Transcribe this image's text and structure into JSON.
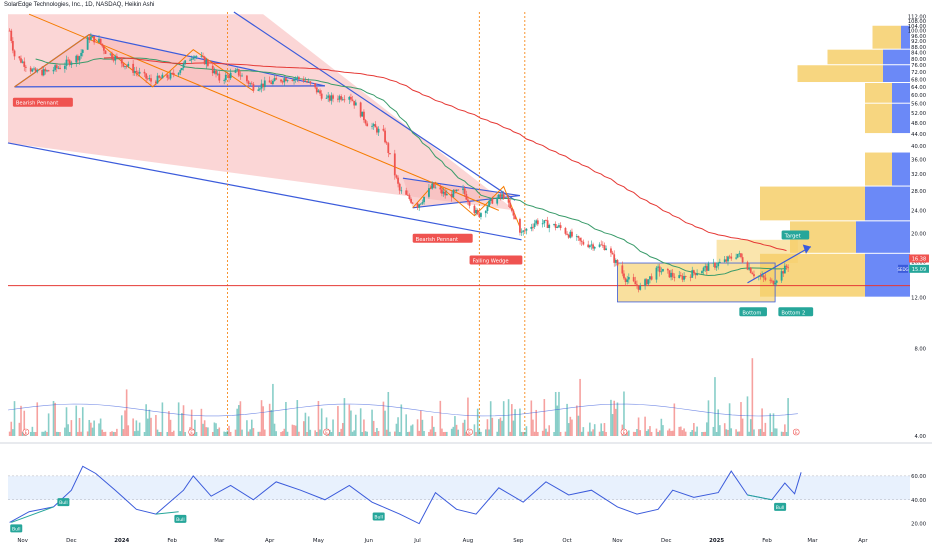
{
  "header": {
    "title": "SolarEdge Technologies, Inc., 1D, NASDAQ, Heikin Ashi"
  },
  "colors": {
    "up": "#26a69a",
    "down": "#ef5350",
    "ma_short": "#3a9b6a",
    "ma_long": "#e53935",
    "trendline": "#3b5bdb",
    "wedge_fill": "#fbd2d2",
    "orange": "#f57c00",
    "volume_profile_up": "#f6cf6a",
    "volume_profile_down": "#5b7cf6",
    "rsi_line": "#3b5bdb",
    "rsi_band": "#e8f1fd"
  },
  "chart_data": [
    {
      "type": "candlestick",
      "style": "heikin-ashi",
      "price_axis": {
        "scale": "log",
        "ticks": [
          "4.00",
          "8.00",
          "12.00",
          "16.00",
          "20.00",
          "24.00",
          "28.00",
          "32.00",
          "36.00",
          "40.00",
          "44.00",
          "48.00",
          "52.00",
          "56.00",
          "60.00",
          "64.00",
          "68.00",
          "72.00",
          "76.00",
          "80.00",
          "84.00",
          "88.00",
          "92.00",
          "96.00",
          "100.00",
          "104.00",
          "108.00",
          "112.00"
        ],
        "range": [
          4,
          116
        ]
      },
      "time_axis": {
        "ticks": [
          "Nov",
          "Dec",
          "2024",
          "Feb",
          "Mar",
          "Apr",
          "May",
          "Jun",
          "Jul",
          "Aug",
          "Sep",
          "Oct",
          "Nov",
          "Dec",
          "2025",
          "Feb",
          "Mar",
          "Apr"
        ],
        "range": [
          "2023-10-23",
          "2025-04-30"
        ]
      },
      "price_path": [
        {
          "date": "2023-10-24",
          "price": 100
        },
        {
          "date": "2023-10-27",
          "price": 82
        },
        {
          "date": "2023-11-01",
          "price": 78
        },
        {
          "date": "2023-11-08",
          "price": 72
        },
        {
          "date": "2023-11-15",
          "price": 72
        },
        {
          "date": "2023-11-24",
          "price": 75
        },
        {
          "date": "2023-12-06",
          "price": 82
        },
        {
          "date": "2023-12-12",
          "price": 95
        },
        {
          "date": "2023-12-18",
          "price": 92
        },
        {
          "date": "2023-12-22",
          "price": 85
        },
        {
          "date": "2024-01-05",
          "price": 75
        },
        {
          "date": "2024-01-19",
          "price": 67
        },
        {
          "date": "2024-02-01",
          "price": 70
        },
        {
          "date": "2024-02-08",
          "price": 76
        },
        {
          "date": "2024-02-14",
          "price": 83
        },
        {
          "date": "2024-02-22",
          "price": 78
        },
        {
          "date": "2024-03-01",
          "price": 68
        },
        {
          "date": "2024-03-12",
          "price": 72
        },
        {
          "date": "2024-03-22",
          "price": 64
        },
        {
          "date": "2024-04-01",
          "price": 66
        },
        {
          "date": "2024-04-12",
          "price": 69
        },
        {
          "date": "2024-04-22",
          "price": 68
        },
        {
          "date": "2024-05-06",
          "price": 58
        },
        {
          "date": "2024-05-20",
          "price": 60
        },
        {
          "date": "2024-05-31",
          "price": 48
        },
        {
          "date": "2024-06-10",
          "price": 44
        },
        {
          "date": "2024-06-20",
          "price": 28
        },
        {
          "date": "2024-07-01",
          "price": 25
        },
        {
          "date": "2024-07-10",
          "price": 29
        },
        {
          "date": "2024-07-19",
          "price": 27
        },
        {
          "date": "2024-07-29",
          "price": 28
        },
        {
          "date": "2024-08-07",
          "price": 23
        },
        {
          "date": "2024-08-16",
          "price": 26
        },
        {
          "date": "2024-08-23",
          "price": 27
        },
        {
          "date": "2024-09-03",
          "price": 20
        },
        {
          "date": "2024-09-12",
          "price": 22
        },
        {
          "date": "2024-09-26",
          "price": 21
        },
        {
          "date": "2024-10-10",
          "price": 18.5
        },
        {
          "date": "2024-10-25",
          "price": 18
        },
        {
          "date": "2024-11-06",
          "price": 14
        },
        {
          "date": "2024-11-15",
          "price": 13
        },
        {
          "date": "2024-11-26",
          "price": 15
        },
        {
          "date": "2024-12-09",
          "price": 14
        },
        {
          "date": "2024-12-23",
          "price": 15
        },
        {
          "date": "2025-01-06",
          "price": 16
        },
        {
          "date": "2025-01-14",
          "price": 17
        },
        {
          "date": "2025-01-24",
          "price": 14.5
        },
        {
          "date": "2025-02-04",
          "price": 13.5
        },
        {
          "date": "2025-02-14",
          "price": 15.5
        }
      ],
      "series": [
        {
          "name": "SEDG",
          "role": "last-price",
          "value": "15.09"
        },
        {
          "role": "label",
          "value": "16.38"
        }
      ],
      "horizontal_level": 13.2,
      "annotations": [
        {
          "text": "Bearish Pennant",
          "date": "2023-10-26",
          "price": 56
        },
        {
          "text": "Bearish Pennant",
          "date": "2024-06-28",
          "price": 19
        },
        {
          "text": "Falling Wedge",
          "date": "2024-08-02",
          "price": 16
        },
        {
          "text": "Target",
          "date": "2025-02-10",
          "price": 19.5
        },
        {
          "text": "Bottom",
          "date": "2025-01-15",
          "price": 10.6
        },
        {
          "text": "Bottom 2",
          "date": "2025-02-08",
          "price": 10.6
        }
      ],
      "volume_profile": [
        {
          "price_low": 66,
          "price_high": 76,
          "up": 0.75,
          "down": 0.3
        },
        {
          "price_low": 76,
          "price_high": 86,
          "up": 0.55,
          "down": 0.3
        },
        {
          "price_low": 86,
          "price_high": 104,
          "up": 0.25,
          "down": 0.1
        },
        {
          "price_low": 56,
          "price_high": 66,
          "up": 0.3,
          "down": 0.2
        },
        {
          "price_low": 44,
          "price_high": 56,
          "up": 0.3,
          "down": 0.2
        },
        {
          "price_low": 29,
          "price_high": 38,
          "up": 0.3,
          "down": 0.2
        },
        {
          "price_low": 22,
          "price_high": 29,
          "up": 1.0,
          "down": 0.5
        },
        {
          "price_low": 17,
          "price_high": 22,
          "up": 0.8,
          "down": 0.6
        },
        {
          "price_low": 12,
          "price_high": 17,
          "up": 1.0,
          "down": 0.5
        }
      ]
    },
    {
      "type": "line",
      "name": "RSI",
      "y_axis": {
        "ticks": [
          "20.00",
          "40.00",
          "60.00"
        ],
        "range": [
          13,
          80
        ]
      },
      "points": [
        {
          "date": "2023-10-24",
          "value": 21
        },
        {
          "date": "2023-11-05",
          "value": 30
        },
        {
          "date": "2023-11-20",
          "value": 34
        },
        {
          "date": "2023-12-01",
          "value": 48
        },
        {
          "date": "2023-12-08",
          "value": 68
        },
        {
          "date": "2023-12-16",
          "value": 62
        },
        {
          "date": "2023-12-28",
          "value": 48
        },
        {
          "date": "2024-01-10",
          "value": 32
        },
        {
          "date": "2024-01-22",
          "value": 28
        },
        {
          "date": "2024-02-08",
          "value": 48
        },
        {
          "date": "2024-02-14",
          "value": 60
        },
        {
          "date": "2024-02-25",
          "value": 43
        },
        {
          "date": "2024-03-08",
          "value": 52
        },
        {
          "date": "2024-03-22",
          "value": 40
        },
        {
          "date": "2024-04-05",
          "value": 55
        },
        {
          "date": "2024-04-20",
          "value": 48
        },
        {
          "date": "2024-05-05",
          "value": 40
        },
        {
          "date": "2024-05-20",
          "value": 52
        },
        {
          "date": "2024-06-03",
          "value": 38
        },
        {
          "date": "2024-06-20",
          "value": 28
        },
        {
          "date": "2024-07-02",
          "value": 20
        },
        {
          "date": "2024-07-12",
          "value": 46
        },
        {
          "date": "2024-07-25",
          "value": 32
        },
        {
          "date": "2024-08-06",
          "value": 28
        },
        {
          "date": "2024-08-20",
          "value": 50
        },
        {
          "date": "2024-09-04",
          "value": 38
        },
        {
          "date": "2024-09-18",
          "value": 55
        },
        {
          "date": "2024-10-02",
          "value": 44
        },
        {
          "date": "2024-10-16",
          "value": 48
        },
        {
          "date": "2024-11-01",
          "value": 34
        },
        {
          "date": "2024-11-13",
          "value": 28
        },
        {
          "date": "2024-11-26",
          "value": 32
        },
        {
          "date": "2024-12-05",
          "value": 48
        },
        {
          "date": "2024-12-18",
          "value": 42
        },
        {
          "date": "2025-01-02",
          "value": 46
        },
        {
          "date": "2025-01-10",
          "value": 64
        },
        {
          "date": "2025-01-20",
          "value": 44
        },
        {
          "date": "2025-02-04",
          "value": 40
        },
        {
          "date": "2025-02-12",
          "value": 54
        },
        {
          "date": "2025-02-18",
          "value": 45
        },
        {
          "date": "2025-02-22",
          "value": 63
        }
      ],
      "overbought": 60,
      "oversold": 40,
      "annotations": [
        {
          "text": "Bull",
          "date": "2023-10-25",
          "value": 16
        },
        {
          "text": "Bull",
          "date": "2023-11-23",
          "value": 38
        },
        {
          "text": "Bull",
          "date": "2024-02-03",
          "value": 24
        },
        {
          "text": "Bull",
          "date": "2024-06-04",
          "value": 26
        },
        {
          "text": "Bull",
          "date": "2025-02-06",
          "value": 34
        }
      ]
    }
  ]
}
